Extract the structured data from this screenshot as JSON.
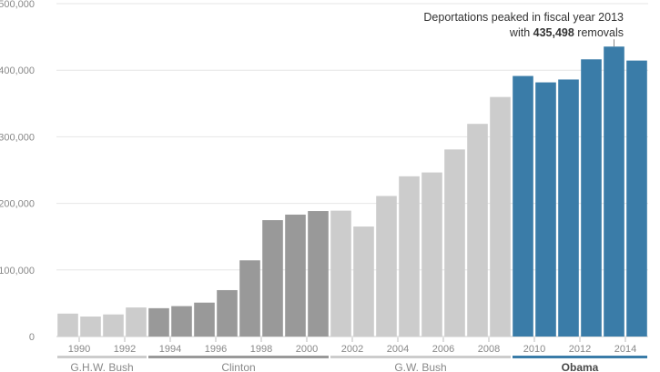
{
  "chart_data": {
    "type": "bar",
    "x": [
      1989,
      1990,
      1991,
      1992,
      1993,
      1994,
      1995,
      1996,
      1997,
      1998,
      1999,
      2000,
      2001,
      2002,
      2003,
      2004,
      2005,
      2006,
      2007,
      2008,
      2009,
      2010,
      2011,
      2012,
      2013,
      2014
    ],
    "values": [
      34427,
      30039,
      33189,
      43671,
      42542,
      45674,
      50924,
      69680,
      114432,
      174813,
      183114,
      188467,
      189026,
      165168,
      211098,
      240665,
      246431,
      280974,
      319382,
      359795,
      391341,
      381738,
      386020,
      416324,
      435498,
      414481
    ],
    "ylim": [
      0,
      500000
    ],
    "y_ticks": [
      0,
      100000,
      200000,
      300000,
      400000,
      500000
    ],
    "y_tick_labels": [
      "0",
      "100,000",
      "200,000",
      "300,000",
      "400,000",
      "500,000"
    ],
    "x_tick_years": [
      1990,
      1992,
      1994,
      1996,
      1998,
      2000,
      2002,
      2004,
      2006,
      2008,
      2010,
      2012,
      2014
    ],
    "x_tick_labels": [
      "1990",
      "1992",
      "1994",
      "1996",
      "1998",
      "2000",
      "2002",
      "2004",
      "2006",
      "2008",
      "2010",
      "2012",
      "2014"
    ],
    "grid": true,
    "administrations": [
      {
        "name": "G.H.W. Bush",
        "start": 1989,
        "end": 1992,
        "color": "#cccccc",
        "highlight": false
      },
      {
        "name": "Clinton",
        "start": 1993,
        "end": 2000,
        "color": "#999999",
        "highlight": false
      },
      {
        "name": "G.W. Bush",
        "start": 2001,
        "end": 2008,
        "color": "#cccccc",
        "highlight": false
      },
      {
        "name": "Obama",
        "start": 2009,
        "end": 2014,
        "color": "#3a7ca8",
        "highlight": true
      }
    ],
    "annotation": {
      "line1": "Deportations peaked in fiscal year 2013",
      "line2_prefix": "with ",
      "line2_bold": "435,498",
      "line2_suffix": " removals",
      "year": 2013
    }
  }
}
